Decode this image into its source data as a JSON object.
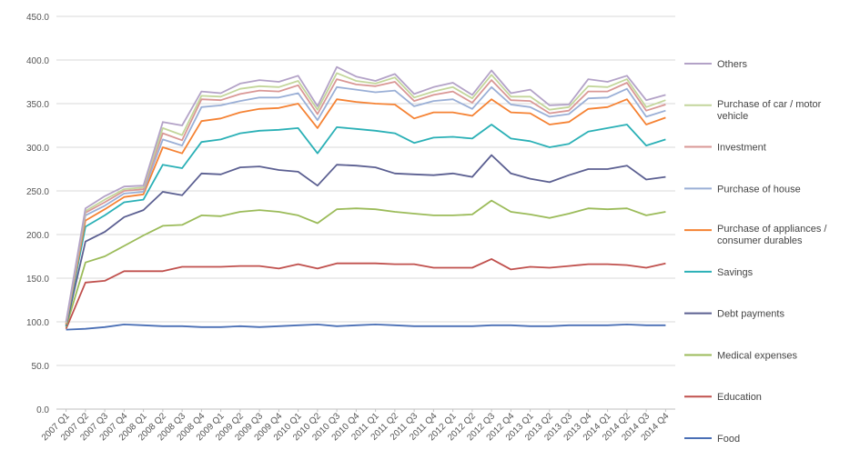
{
  "chart_data": {
    "type": "area",
    "stacked": true,
    "grid": true,
    "legend_position": "right",
    "ylim": [
      0,
      450
    ],
    "yticks": [
      "0.0",
      "50.0",
      "100.0",
      "150.0",
      "200.0",
      "250.0",
      "300.0",
      "350.0",
      "400.0",
      "450.0"
    ],
    "categories": [
      "2007 Q1",
      "2007 Q2",
      "2007 Q3",
      "2007 Q4",
      "2008 Q1",
      "2008 Q2",
      "2008 Q3",
      "2008 Q4",
      "2009 Q1",
      "2009 Q2",
      "2009 Q3",
      "2009 Q4",
      "2010 Q1",
      "2010 Q2",
      "2010 Q3",
      "2010 Q4",
      "2011 Q1",
      "2011 Q2",
      "2011 Q3",
      "2011 Q4",
      "2012 Q1",
      "2012 Q2",
      "2012 Q3",
      "2012 Q4",
      "2013 Q1",
      "2013 Q2",
      "2013 Q3",
      "2013 Q4",
      "2014 Q1",
      "2014 Q2",
      "2014 Q3",
      "2014 Q4"
    ],
    "series": [
      {
        "name": "Food",
        "color": "#4a6fb5",
        "values": [
          91,
          92,
          94,
          97,
          96,
          95,
          95,
          94,
          94,
          95,
          94,
          95,
          96,
          97,
          95,
          96,
          97,
          96,
          95,
          95,
          95,
          95,
          96,
          96,
          95,
          95,
          96,
          96,
          96,
          97,
          96,
          96
        ]
      },
      {
        "name": "Education",
        "color": "#c0504d",
        "values": [
          92,
          145,
          147,
          158,
          158,
          158,
          163,
          163,
          163,
          164,
          164,
          161,
          166,
          161,
          167,
          167,
          167,
          166,
          166,
          162,
          162,
          162,
          172,
          160,
          163,
          162,
          164,
          166,
          166,
          165,
          162,
          167
        ]
      },
      {
        "name": "Medical expenses",
        "color": "#9bbb59",
        "values": [
          94,
          168,
          175,
          187,
          199,
          210,
          211,
          222,
          221,
          226,
          228,
          226,
          222,
          213,
          229,
          230,
          229,
          226,
          224,
          222,
          222,
          223,
          239,
          226,
          223,
          219,
          224,
          230,
          229,
          230,
          222,
          226
        ]
      },
      {
        "name": "Debt payments",
        "color": "#5b5f91",
        "values": [
          95,
          192,
          203,
          220,
          228,
          249,
          245,
          270,
          269,
          277,
          278,
          274,
          272,
          256,
          280,
          279,
          277,
          270,
          269,
          268,
          270,
          266,
          291,
          270,
          264,
          260,
          268,
          275,
          275,
          279,
          263,
          266
        ]
      },
      {
        "name": "Savings",
        "color": "#2ab0b6",
        "values": [
          96,
          209,
          222,
          237,
          240,
          280,
          276,
          306,
          309,
          316,
          319,
          320,
          322,
          293,
          323,
          321,
          319,
          316,
          305,
          311,
          312,
          310,
          326,
          310,
          307,
          300,
          304,
          318,
          322,
          326,
          302,
          309
        ]
      },
      {
        "name": "Purchase of appliances / consumer durables",
        "color": "#f58233",
        "values": [
          97,
          216,
          229,
          243,
          246,
          300,
          293,
          330,
          333,
          340,
          344,
          345,
          350,
          322,
          355,
          352,
          350,
          349,
          333,
          340,
          340,
          336,
          355,
          340,
          339,
          326,
          329,
          344,
          346,
          355,
          326,
          334
        ]
      },
      {
        "name": "Purchase of house",
        "color": "#9aafd6",
        "values": [
          98,
          222,
          233,
          247,
          249,
          309,
          302,
          346,
          348,
          353,
          357,
          357,
          362,
          331,
          369,
          366,
          363,
          365,
          347,
          353,
          355,
          344,
          369,
          349,
          346,
          335,
          338,
          356,
          357,
          367,
          335,
          342
        ]
      },
      {
        "name": "Investment",
        "color": "#d99795",
        "values": [
          98,
          225,
          237,
          250,
          252,
          316,
          308,
          355,
          354,
          361,
          365,
          364,
          371,
          338,
          378,
          372,
          370,
          375,
          353,
          360,
          364,
          351,
          377,
          354,
          353,
          339,
          342,
          364,
          364,
          374,
          342,
          349
        ]
      },
      {
        "name": "Purchase of car / motor vehicle",
        "color": "#c3d69b",
        "values": [
          99,
          227,
          240,
          252,
          254,
          322,
          314,
          359,
          358,
          367,
          370,
          369,
          376,
          343,
          385,
          376,
          373,
          380,
          357,
          364,
          369,
          356,
          383,
          358,
          358,
          343,
          346,
          370,
          369,
          378,
          346,
          354
        ]
      },
      {
        "name": "Others",
        "color": "#b3a2c7",
        "values": [
          100,
          230,
          244,
          255,
          256,
          329,
          325,
          364,
          362,
          373,
          377,
          375,
          382,
          347,
          392,
          381,
          376,
          384,
          361,
          369,
          374,
          360,
          388,
          362,
          366,
          348,
          349,
          378,
          375,
          382,
          354,
          360
        ]
      }
    ]
  }
}
